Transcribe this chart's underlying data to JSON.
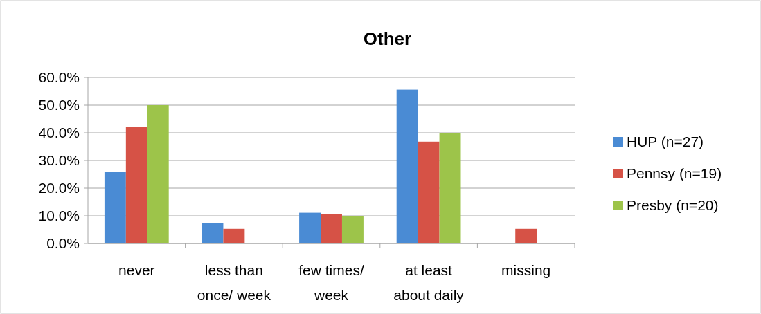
{
  "chart_data": {
    "type": "bar",
    "title": "Other",
    "categories": [
      "never",
      "less than once/ week",
      "few times/ week",
      "at least about daily",
      "missing"
    ],
    "series": [
      {
        "name": "HUP (n=27)",
        "color": "#4a8bd4",
        "values": [
          25.9,
          7.4,
          11.1,
          55.6,
          0
        ]
      },
      {
        "name": "Pennsy (n=19)",
        "color": "#d65246",
        "values": [
          42.1,
          5.3,
          10.5,
          36.8,
          5.3
        ]
      },
      {
        "name": "Presby (n=20)",
        "color": "#9dc44a",
        "values": [
          50,
          0,
          10,
          40,
          0
        ]
      }
    ],
    "ylim": [
      0,
      60
    ],
    "yticks": [
      {
        "value": 0,
        "label": "0.0%"
      },
      {
        "value": 10,
        "label": "10.0%"
      },
      {
        "value": 20,
        "label": "20.0%"
      },
      {
        "value": 30,
        "label": "30.0%"
      },
      {
        "value": 40,
        "label": "40.0%"
      },
      {
        "value": 50,
        "label": "50.0%"
      },
      {
        "value": 60,
        "label": "60.0%"
      }
    ],
    "grid": "y",
    "legend": "right"
  }
}
